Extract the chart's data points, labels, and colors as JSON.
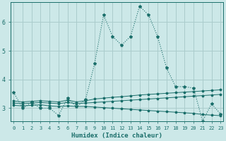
{
  "xlabel": "Humidex (Indice chaleur)",
  "background_color": "#cce8e8",
  "grid_color": "#aacccc",
  "line_color": "#1a6e6a",
  "x_ticks": [
    0,
    1,
    2,
    3,
    4,
    5,
    6,
    7,
    8,
    9,
    10,
    11,
    12,
    13,
    14,
    15,
    16,
    17,
    18,
    19,
    20,
    21,
    22,
    23
  ],
  "y_ticks": [
    3,
    4,
    5,
    6
  ],
  "ylim": [
    2.55,
    6.7
  ],
  "xlim": [
    -0.3,
    23.3
  ],
  "series1_x": [
    0,
    1,
    2,
    3,
    4,
    5,
    6,
    7,
    8,
    9,
    10,
    11,
    12,
    13,
    14,
    15,
    16,
    17,
    18,
    19,
    20,
    21,
    22,
    23
  ],
  "series1_y": [
    3.55,
    3.0,
    3.2,
    3.0,
    3.0,
    2.75,
    3.35,
    3.05,
    3.3,
    4.55,
    6.25,
    5.5,
    5.2,
    5.5,
    6.55,
    6.25,
    5.5,
    4.4,
    3.75,
    3.75,
    3.7,
    2.55,
    3.15,
    2.8
  ],
  "series2_x": [
    0,
    1,
    2,
    3,
    4,
    5,
    6,
    7,
    8,
    9,
    10,
    11,
    12,
    13,
    14,
    15,
    16,
    17,
    18,
    19,
    20,
    21,
    22,
    23
  ],
  "series2_y": [
    3.25,
    3.22,
    3.24,
    3.26,
    3.24,
    3.22,
    3.28,
    3.22,
    3.26,
    3.32,
    3.35,
    3.38,
    3.4,
    3.43,
    3.46,
    3.48,
    3.5,
    3.52,
    3.54,
    3.56,
    3.58,
    3.6,
    3.62,
    3.64
  ],
  "series3_x": [
    0,
    1,
    2,
    3,
    4,
    5,
    6,
    7,
    8,
    9,
    10,
    11,
    12,
    13,
    14,
    15,
    16,
    17,
    18,
    19,
    20,
    21,
    22,
    23
  ],
  "series3_y": [
    3.18,
    3.16,
    3.18,
    3.2,
    3.18,
    3.16,
    3.2,
    3.16,
    3.18,
    3.2,
    3.22,
    3.24,
    3.26,
    3.28,
    3.3,
    3.32,
    3.34,
    3.36,
    3.38,
    3.4,
    3.42,
    3.44,
    3.46,
    3.48
  ],
  "series4_x": [
    0,
    1,
    2,
    3,
    4,
    5,
    6,
    7,
    8,
    9,
    10,
    11,
    12,
    13,
    14,
    15,
    16,
    17,
    18,
    19,
    20,
    21,
    22,
    23
  ],
  "series4_y": [
    3.1,
    3.08,
    3.1,
    3.12,
    3.08,
    3.06,
    3.08,
    3.06,
    3.06,
    3.04,
    3.02,
    3.0,
    2.98,
    2.96,
    2.94,
    2.92,
    2.9,
    2.88,
    2.86,
    2.84,
    2.82,
    2.78,
    2.76,
    2.74
  ]
}
